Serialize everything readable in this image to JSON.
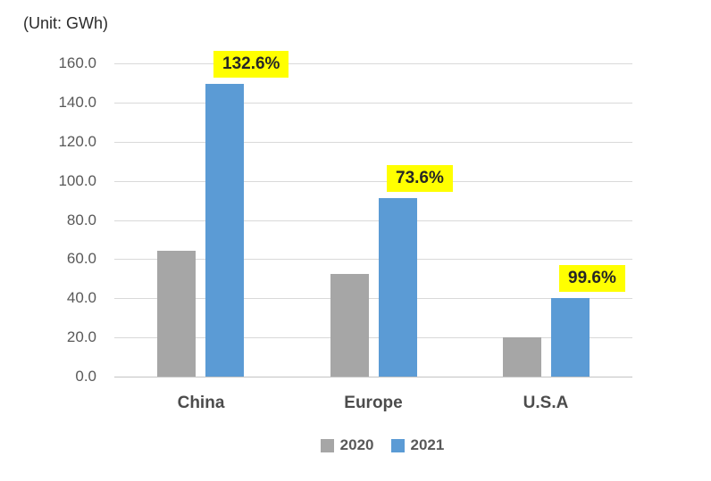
{
  "unit_label": "(Unit: GWh)",
  "colors": {
    "bar_2020": "#a6a6a6",
    "bar_2021": "#5b9bd5",
    "highlight_bg": "#ffff00",
    "highlight_text": "#262626",
    "gridline": "#d9d9d9",
    "axis_text": "#595959",
    "category_text": "#4c4c4c"
  },
  "chart_data": {
    "type": "bar",
    "title": "(Unit: GWh)",
    "categories": [
      "China",
      "Europe",
      "U.S.A"
    ],
    "series": [
      {
        "name": "2020",
        "values": [
          64.3,
          52.4,
          20.0
        ]
      },
      {
        "name": "2021",
        "values": [
          149.5,
          91.0,
          40.0
        ]
      }
    ],
    "growth_labels": [
      "132.6%",
      "73.6%",
      "99.6%"
    ],
    "ylim": [
      0,
      160
    ],
    "ytick_step": 20,
    "ytick_labels": [
      "0.0",
      "20.0",
      "40.0",
      "60.0",
      "80.0",
      "100.0",
      "120.0",
      "140.0",
      "160.0"
    ],
    "grid": true,
    "legend_position": "bottom"
  }
}
